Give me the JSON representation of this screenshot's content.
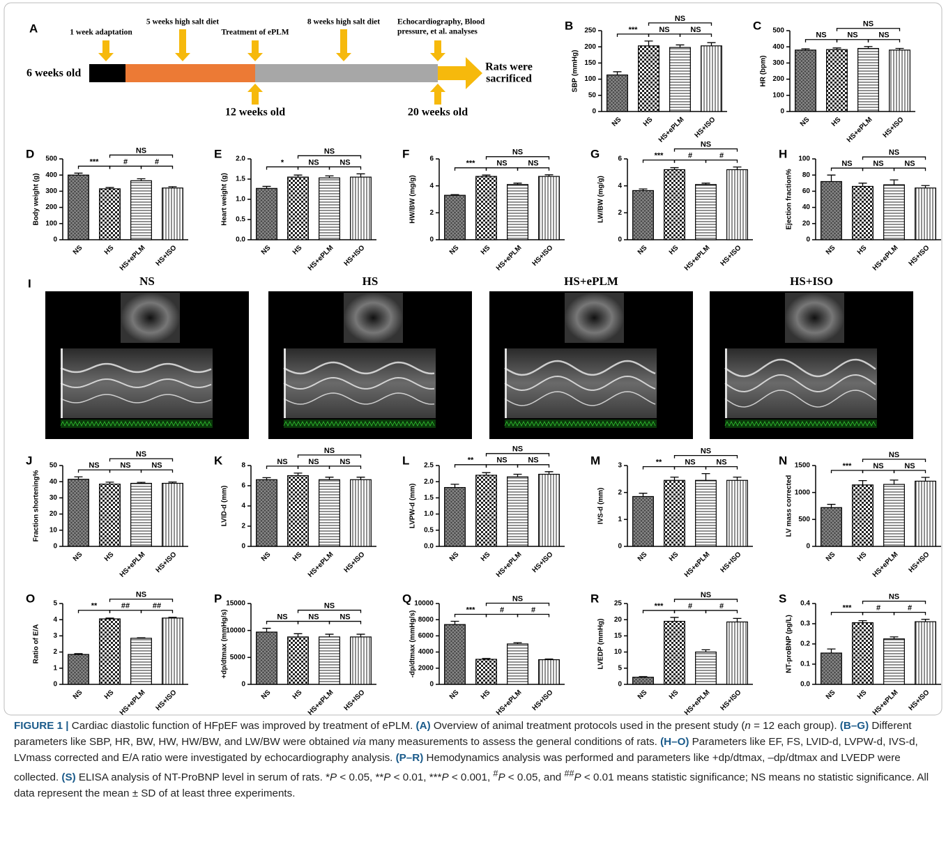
{
  "timeline": {
    "panel": "A",
    "start": "6 weeks old",
    "events": [
      "1 week adaptation",
      "5 weeks high salt diet",
      "Treatment of ePLM",
      "8 weeks high salt diet",
      [
        "Echocardiography, Blood",
        "pressure, et al. analyses"
      ]
    ],
    "milestones": [
      "12 weeks old",
      "20 weeks old"
    ],
    "end": [
      "Rats were",
      "sacrificed"
    ]
  },
  "echo": {
    "panel": "I",
    "titles": [
      "NS",
      "HS",
      "HS+ePLM",
      "HS+ISO"
    ]
  },
  "chart_data": [
    {
      "type": "bar",
      "panel": "B",
      "ylabel": "SBP (mmHg)",
      "categories": [
        "NS",
        "HS",
        "HS+ePLM",
        "HS+ISO"
      ],
      "values": [
        113,
        203,
        198,
        203
      ],
      "errors": [
        10,
        15,
        8,
        10
      ],
      "ylim": [
        0,
        250
      ],
      "yticks": [
        0,
        50,
        100,
        150,
        200,
        250
      ],
      "annotations": [
        "***",
        "NS",
        "NS",
        "NS"
      ]
    },
    {
      "type": "bar",
      "panel": "C",
      "ylabel": "HR (bpm)",
      "categories": [
        "NS",
        "HS",
        "HS+ePLM",
        "HS+ISO"
      ],
      "values": [
        380,
        383,
        390,
        380
      ],
      "errors": [
        8,
        10,
        12,
        10
      ],
      "ylim": [
        0,
        500
      ],
      "yticks": [
        0,
        100,
        200,
        300,
        400,
        500
      ],
      "annotations": [
        "NS",
        "NS",
        "NS",
        "NS"
      ]
    },
    {
      "type": "bar",
      "panel": "D",
      "ylabel": "Body weight (g)",
      "categories": [
        "NS",
        "HS",
        "HS+ePLM",
        "HS+ISO"
      ],
      "values": [
        400,
        315,
        365,
        320
      ],
      "errors": [
        12,
        8,
        12,
        8
      ],
      "ylim": [
        0,
        500
      ],
      "yticks": [
        0,
        100,
        200,
        300,
        400,
        500
      ],
      "annotations": [
        "***",
        "#",
        "#",
        "NS"
      ]
    },
    {
      "type": "bar",
      "panel": "E",
      "ylabel": "Heart weight (g)",
      "categories": [
        "NS",
        "HS",
        "HS+ePLM",
        "HS+ISO"
      ],
      "values": [
        1.27,
        1.55,
        1.53,
        1.55
      ],
      "errors": [
        0.05,
        0.05,
        0.05,
        0.08
      ],
      "ylim": [
        0,
        2
      ],
      "yticks": [
        {
          "value": 0,
          "label": "0.0"
        },
        0.5,
        {
          "value": 1,
          "label": "1.0"
        },
        1.5,
        {
          "value": 2,
          "label": "2.0"
        }
      ],
      "annotations": [
        "*",
        "NS",
        "NS",
        "NS"
      ]
    },
    {
      "type": "bar",
      "panel": "F",
      "ylabel": "HW/BW (mg/g)",
      "categories": [
        "NS",
        "HS",
        "HS+ePLM",
        "HS+ISO"
      ],
      "values": [
        3.3,
        4.7,
        4.1,
        4.7
      ],
      "errors": [
        0.05,
        0.1,
        0.1,
        0.12
      ],
      "ylim": [
        0,
        6
      ],
      "yticks": [
        0,
        2,
        4,
        6
      ],
      "annotations": [
        "***",
        "NS",
        "NS",
        "NS"
      ]
    },
    {
      "type": "bar",
      "panel": "G",
      "ylabel": "LW/BW (mg/g)",
      "categories": [
        "NS",
        "HS",
        "HS+ePLM",
        "HS+ISO"
      ],
      "values": [
        3.65,
        5.2,
        4.1,
        5.2
      ],
      "errors": [
        0.12,
        0.15,
        0.1,
        0.2
      ],
      "ylim": [
        0,
        6
      ],
      "yticks": [
        0,
        2,
        4,
        6
      ],
      "annotations": [
        "***",
        "#",
        "#",
        "NS"
      ]
    },
    {
      "type": "bar",
      "panel": "H",
      "ylabel": "Ejection fraction%",
      "categories": [
        "NS",
        "HS",
        "HS+ePLM",
        "HS+ISO"
      ],
      "values": [
        72,
        66,
        68,
        64
      ],
      "errors": [
        8,
        4,
        6,
        3
      ],
      "ylim": [
        0,
        100
      ],
      "yticks": [
        0,
        20,
        40,
        60,
        80,
        100
      ],
      "annotations": [
        "NS",
        "NS",
        "NS",
        "NS"
      ]
    },
    {
      "type": "bar",
      "panel": "J",
      "ylabel": "Fraction shortening%",
      "categories": [
        "NS",
        "HS",
        "HS+ePLM",
        "HS+ISO"
      ],
      "values": [
        41.5,
        38.5,
        39,
        39
      ],
      "errors": [
        1.5,
        1.2,
        0.6,
        0.8
      ],
      "ylim": [
        0,
        50
      ],
      "yticks": [
        0,
        10,
        20,
        30,
        40,
        50
      ],
      "annotations": [
        "NS",
        "NS",
        "NS",
        "NS"
      ]
    },
    {
      "type": "bar",
      "panel": "K",
      "ylabel": "LVID-d (mm)",
      "categories": [
        "NS",
        "HS",
        "HS+ePLM",
        "HS+ISO"
      ],
      "values": [
        6.6,
        7.0,
        6.6,
        6.6
      ],
      "errors": [
        0.2,
        0.25,
        0.25,
        0.25
      ],
      "ylim": [
        0,
        8
      ],
      "yticks": [
        0,
        2,
        4,
        6,
        8
      ],
      "annotations": [
        "NS",
        "NS",
        "NS",
        "NS"
      ]
    },
    {
      "type": "bar",
      "panel": "L",
      "ylabel": "LVPW-d (mm)",
      "categories": [
        "NS",
        "HS",
        "HS+ePLM",
        "HS+ISO"
      ],
      "values": [
        1.82,
        2.2,
        2.15,
        2.23
      ],
      "errors": [
        0.1,
        0.08,
        0.08,
        0.08
      ],
      "ylim": [
        0,
        2.5
      ],
      "yticks": [
        {
          "value": 0,
          "label": "0.0"
        },
        0.5,
        {
          "value": 1,
          "label": "1.0"
        },
        1.5,
        {
          "value": 2,
          "label": "2.0"
        },
        2.5
      ],
      "annotations": [
        "**",
        "NS",
        "NS",
        "NS"
      ]
    },
    {
      "type": "bar",
      "panel": "M",
      "ylabel": "IVS-d (mm)",
      "categories": [
        "NS",
        "HS",
        "HS+ePLM",
        "HS+ISO"
      ],
      "values": [
        1.85,
        2.45,
        2.45,
        2.45
      ],
      "errors": [
        0.12,
        0.12,
        0.25,
        0.12
      ],
      "ylim": [
        0,
        3
      ],
      "yticks": [
        0,
        1,
        2,
        3
      ],
      "annotations": [
        "**",
        "NS",
        "NS",
        "NS"
      ]
    },
    {
      "type": "bar",
      "panel": "N",
      "ylabel": "LV mass corrected",
      "categories": [
        "NS",
        "HS",
        "HS+ePLM",
        "HS+ISO"
      ],
      "values": [
        720,
        1140,
        1150,
        1210
      ],
      "errors": [
        60,
        80,
        80,
        70
      ],
      "ylim": [
        0,
        1500
      ],
      "yticks": [
        0,
        500,
        1000,
        1500
      ],
      "annotations": [
        "***",
        "NS",
        "NS",
        "NS"
      ]
    },
    {
      "type": "bar",
      "panel": "O",
      "ylabel": "Ratio of E/A",
      "categories": [
        "NS",
        "HS",
        "HS+ePLM",
        "HS+ISO"
      ],
      "values": [
        1.85,
        4.05,
        2.85,
        4.1
      ],
      "errors": [
        0.05,
        0.05,
        0.03,
        0.05
      ],
      "ylim": [
        0,
        5
      ],
      "yticks": [
        0,
        1,
        2,
        3,
        4,
        5
      ],
      "annotations": [
        "**",
        "##",
        "##",
        "NS"
      ]
    },
    {
      "type": "bar",
      "panel": "P",
      "ylabel": "+dp/dtmax (mmHg/s)",
      "categories": [
        "NS",
        "HS",
        "HS+ePLM",
        "HS+ISO"
      ],
      "values": [
        9700,
        8800,
        8800,
        8800
      ],
      "errors": [
        700,
        600,
        500,
        500
      ],
      "ylim": [
        0,
        15000
      ],
      "yticks": [
        0,
        5000,
        10000,
        15000
      ],
      "annotations": [
        "NS",
        "NS",
        "NS",
        "NS"
      ]
    },
    {
      "type": "bar",
      "panel": "Q",
      "ylabel": "-dp/dtmax (mmHg/s)",
      "categories": [
        "NS",
        "HS",
        "HS+ePLM",
        "HS+ISO"
      ],
      "values": [
        7400,
        3100,
        5000,
        3050
      ],
      "errors": [
        400,
        100,
        150,
        80
      ],
      "ylim": [
        0,
        10000
      ],
      "yticks": [
        0,
        2000,
        4000,
        6000,
        8000,
        10000
      ],
      "annotations": [
        "***",
        "#",
        "#",
        "NS"
      ]
    },
    {
      "type": "bar",
      "panel": "R",
      "ylabel": "LVEDP (mmHg)",
      "categories": [
        "NS",
        "HS",
        "HS+ePLM",
        "HS+ISO"
      ],
      "values": [
        2.2,
        19.5,
        10,
        19.3
      ],
      "errors": [
        0.2,
        1.2,
        0.7,
        1.1
      ],
      "ylim": [
        0,
        25
      ],
      "yticks": [
        0,
        5,
        10,
        15,
        20,
        25
      ],
      "annotations": [
        "***",
        "#",
        "#",
        "NS"
      ]
    },
    {
      "type": "bar",
      "panel": "S",
      "ylabel": "NT-proBNP (pg/L)",
      "categories": [
        "NS",
        "HS",
        "HS+ePLM",
        "HS+ISO"
      ],
      "values": [
        0.155,
        0.305,
        0.225,
        0.31
      ],
      "errors": [
        0.02,
        0.01,
        0.01,
        0.012
      ],
      "ylim": [
        0,
        0.4
      ],
      "yticks": [
        {
          "value": 0,
          "label": "0.0"
        },
        0.1,
        0.2,
        0.3,
        0.4
      ],
      "annotations": [
        "***",
        "#",
        "#",
        "NS"
      ]
    }
  ],
  "caption": {
    "segments": [
      "FIGURE 1 |",
      " Cardiac diastolic function of HFpEF was improved by treatment of ePLM. ",
      "(A)",
      " Overview of animal treatment protocols used in the present study (",
      "n",
      " = 12 each group). ",
      "(B–G)",
      " Different parameters like SBP, HR, BW, HW, HW/BW, and LW/BW were obtained ",
      "via",
      " many measurements to assess the general conditions of rats. ",
      "(H–O)",
      " Parameters like EF, FS, LVID-d, LVPW-d, IVS-d, LVmass corrected and E/A ratio were investigated by echocardiography analysis. ",
      "(P–R)",
      " Hemodynamics analysis was performed and parameters like +dp/dtmax, –dp/dtmax and LVEDP were collected. ",
      "(S)",
      " ELISA analysis of NT-ProBNP level in serum of rats. *",
      "P",
      " < 0.05, **",
      "P",
      " < 0.01, ***",
      "P",
      " < 0.001, ",
      "#",
      "P",
      " < 0.05, and ",
      "##",
      "P",
      " < 0.01 means statistic significance; NS means no statistic significance. All data represent the mean ± SD of at least three experiments."
    ]
  }
}
